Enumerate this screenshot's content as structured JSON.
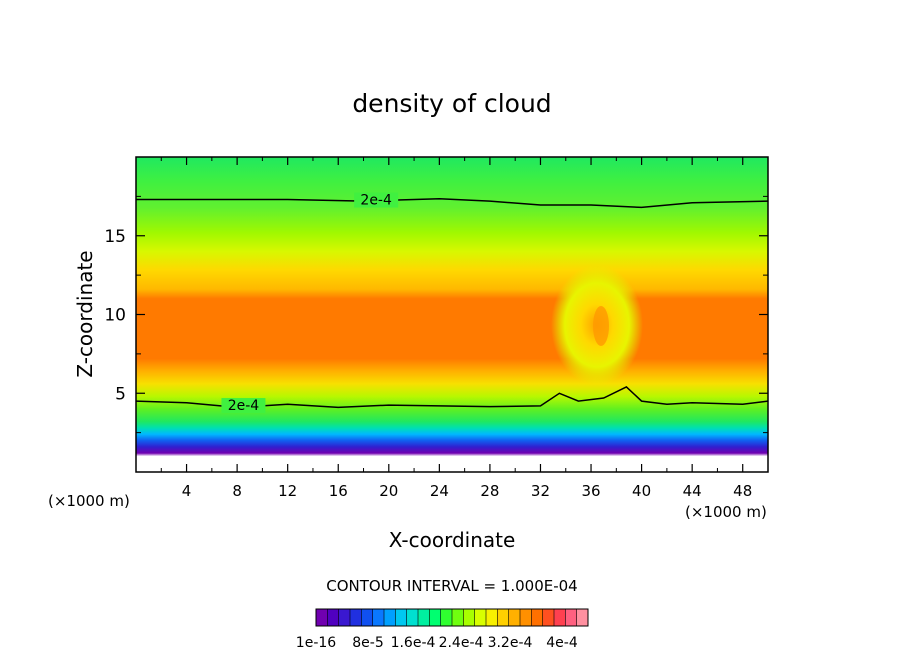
{
  "chart_data": {
    "type": "heatmap",
    "title": "density of cloud",
    "xlabel": "X-coordinate",
    "ylabel": "Z-coordinate",
    "x_unit_left": "(×1000 m)",
    "x_unit_right": "(×1000 m)",
    "xlim": [
      0,
      50
    ],
    "ylim": [
      0,
      20
    ],
    "x_ticks": [
      4,
      8,
      12,
      16,
      20,
      24,
      28,
      32,
      36,
      40,
      44,
      48
    ],
    "y_ticks": [
      5,
      10,
      15
    ],
    "contour_interval_text": "CONTOUR INTERVAL = 1.000E-04",
    "contour_labels": [
      "2e-4",
      "2e-4"
    ],
    "colorbar_labels": [
      "1e-16",
      "8e-5",
      "1.6e-4",
      "2.4e-4",
      "3.2e-4",
      "4e-4"
    ],
    "colorbar_colors": [
      "#7000b0",
      "#5000c0",
      "#3a18d0",
      "#2030e0",
      "#1050f0",
      "#0a78ff",
      "#00a0ff",
      "#00c8f0",
      "#00e0d0",
      "#00f0a0",
      "#00ff70",
      "#30ff30",
      "#70ff10",
      "#a8ff00",
      "#d8ff00",
      "#f8f000",
      "#ffd000",
      "#ffb000",
      "#ff9000",
      "#ff7000",
      "#ff5020",
      "#ff4050",
      "#ff6080",
      "#ff90a0"
    ],
    "contour_lines": [
      {
        "level": "2e-4",
        "points": [
          [
            0,
            17.3
          ],
          [
            6,
            17.3
          ],
          [
            12,
            17.3
          ],
          [
            18,
            17.2
          ],
          [
            24,
            17.35
          ],
          [
            28,
            17.2
          ],
          [
            32,
            16.95
          ],
          [
            36,
            16.95
          ],
          [
            40,
            16.8
          ],
          [
            44,
            17.1
          ],
          [
            50,
            17.2
          ]
        ]
      },
      {
        "level": "2e-4",
        "points": [
          [
            0,
            4.5
          ],
          [
            4,
            4.4
          ],
          [
            8,
            4.1
          ],
          [
            12,
            4.3
          ],
          [
            16,
            4.1
          ],
          [
            20,
            4.25
          ],
          [
            24,
            4.2
          ],
          [
            28,
            4.15
          ],
          [
            32,
            4.2
          ],
          [
            33.5,
            5.0
          ],
          [
            35,
            4.5
          ],
          [
            37,
            4.7
          ],
          [
            38.8,
            5.4
          ],
          [
            40,
            4.5
          ],
          [
            42,
            4.3
          ],
          [
            44,
            4.4
          ],
          [
            48,
            4.3
          ],
          [
            50,
            4.5
          ]
        ]
      }
    ]
  }
}
